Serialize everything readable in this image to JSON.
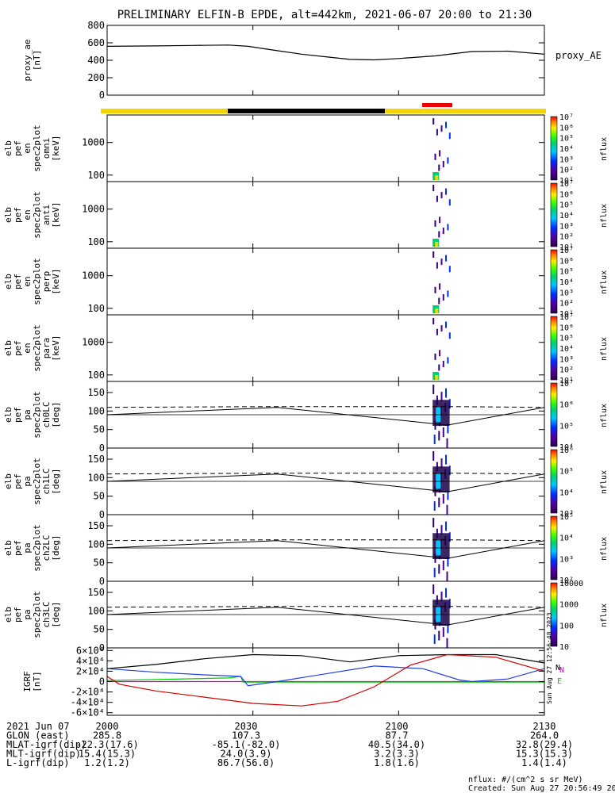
{
  "chart_data": {
    "type": "line",
    "title": "PRELIMINARY ELFIN-B EPDE, alt=442km, 2021-06-07 20:00 to 21:30",
    "time_range": [
      "2021-06-07 20:00",
      "2021-06-07 21:30"
    ],
    "x_ticks": [
      "2000",
      "2030",
      "2100",
      "2130"
    ],
    "panels": [
      {
        "name": "proxy_ae",
        "ylabel": [
          "proxy_ae",
          "[nT]"
        ],
        "ylim": [
          0,
          800
        ],
        "yticks": [
          "0",
          "200",
          "400",
          "600",
          "800"
        ],
        "legend": "proxy_AE",
        "series": [
          {
            "x": [
              0,
              20,
              35,
              50,
              58,
              70,
              80,
              90,
              100,
              110,
              120,
              135,
              150,
              165,
              180
            ],
            "y": [
              560,
              565,
              570,
              575,
              560,
              510,
              470,
              440,
              410,
              405,
              420,
              450,
              500,
              505,
              470
            ]
          }
        ]
      },
      {
        "name": "en_omni",
        "ylabel": [
          "elb",
          "pef",
          "en",
          "spec2plot",
          "omni",
          "[keV]"
        ],
        "ylim": [
          63,
          7000
        ],
        "scale": "log",
        "yticks": [
          "100",
          "1000"
        ],
        "colorbar": {
          "label": "nflux",
          "ticks": [
            "10¹",
            "10²",
            "10³",
            "10⁴",
            "10⁵",
            "10⁶",
            "10⁷"
          ]
        }
      },
      {
        "name": "en_anti",
        "ylabel": [
          "elb",
          "pef",
          "en",
          "spec2plot",
          "anti",
          "[keV]"
        ],
        "ylim": [
          63,
          7000
        ],
        "scale": "log",
        "yticks": [
          "100",
          "1000"
        ],
        "colorbar": {
          "label": "nflux",
          "ticks": [
            "10¹",
            "10²",
            "10³",
            "10⁴",
            "10⁵",
            "10⁶",
            "10⁷"
          ]
        }
      },
      {
        "name": "en_perp",
        "ylabel": [
          "elb",
          "pef",
          "en",
          "spec2plot",
          "perp",
          "[keV]"
        ],
        "ylim": [
          63,
          7000
        ],
        "scale": "log",
        "yticks": [
          "100",
          "1000"
        ],
        "colorbar": {
          "label": "nflux",
          "ticks": [
            "10¹",
            "10²",
            "10³",
            "10⁴",
            "10⁵",
            "10⁶",
            "10⁷"
          ]
        }
      },
      {
        "name": "en_para",
        "ylabel": [
          "elb",
          "pef",
          "en",
          "spec2plot",
          "para",
          "[keV]"
        ],
        "ylim": [
          63,
          7000
        ],
        "scale": "log",
        "yticks": [
          "100",
          "1000"
        ],
        "colorbar": {
          "label": "nflux",
          "ticks": [
            "10¹",
            "10²",
            "10³",
            "10⁴",
            "10⁵",
            "10⁶",
            "10⁷"
          ]
        }
      },
      {
        "name": "pa_ch0LC",
        "ylabel": [
          "elb",
          "pef",
          "pa",
          "spec2plot",
          "ch0LC",
          "[deg]"
        ],
        "ylim": [
          0,
          180
        ],
        "yticks": [
          "0",
          "50",
          "100",
          "150"
        ],
        "colorbar": {
          "label": "nflux",
          "ticks": [
            "10⁴",
            "10⁵",
            "10⁶",
            "10⁷"
          ]
        }
      },
      {
        "name": "pa_ch1LC",
        "ylabel": [
          "elb",
          "pef",
          "pa",
          "spec2plot",
          "ch1LC",
          "[deg]"
        ],
        "ylim": [
          0,
          180
        ],
        "yticks": [
          "0",
          "50",
          "100",
          "150"
        ],
        "colorbar": {
          "label": "nflux",
          "ticks": [
            "10³",
            "10⁴",
            "10⁵",
            "10⁶"
          ]
        }
      },
      {
        "name": "pa_ch2LC",
        "ylabel": [
          "elb",
          "pef",
          "pa",
          "spec2plot",
          "ch2LC",
          "[deg]"
        ],
        "ylim": [
          0,
          180
        ],
        "yticks": [
          "0",
          "50",
          "100",
          "150"
        ],
        "colorbar": {
          "label": "nflux",
          "ticks": [
            "10²",
            "10³",
            "10⁴",
            "10⁵"
          ]
        }
      },
      {
        "name": "pa_ch3LC",
        "ylabel": [
          "elb",
          "pef",
          "pa",
          "spec2plot",
          "ch3LC",
          "[deg]"
        ],
        "ylim": [
          0,
          180
        ],
        "yticks": [
          "0",
          "50",
          "100",
          "150"
        ],
        "colorbar": {
          "label": "nflux",
          "ticks": [
            "10",
            "100",
            "1000",
            "10000"
          ]
        }
      },
      {
        "name": "igrf",
        "ylabel": [
          "IGRF",
          "[nT]"
        ],
        "ylim": [
          -65000,
          65000
        ],
        "yticks": [
          "-6×10⁴",
          "-4×10⁴",
          "-2×10⁴",
          "0",
          "2×10⁴",
          "4×10⁴",
          "6×10⁴"
        ],
        "series": [
          {
            "name": "N",
            "color": "#000000",
            "x": [
              0,
              20,
              40,
              60,
              80,
              100,
              120,
              140,
              160,
              180
            ],
            "y": [
              25000,
              33000,
              44000,
              52000,
              50000,
              38000,
              50000,
              52000,
              52000,
              36000
            ]
          },
          {
            "name": "N",
            "color": "#d000d0",
            "x": [
              0,
              180
            ],
            "y": [
              0,
              0
            ]
          },
          {
            "name": "E",
            "color": "#00cc00",
            "x": [
              0,
              50,
              55,
              56,
              80,
              130,
              175,
              180
            ],
            "y": [
              2000,
              7000,
              10000,
              -1000,
              -1000,
              -1000,
              -1000,
              -1000
            ]
          },
          {
            "name": "",
            "color": "#1f3fdf",
            "x": [
              0,
              20,
              40,
              55,
              58,
              70,
              90,
              110,
              130,
              145,
              150,
              165,
              180
            ],
            "y": [
              25000,
              18000,
              13000,
              10000,
              -8000,
              0,
              15000,
              30000,
              25000,
              3000,
              0,
              5000,
              25000
            ]
          },
          {
            "name": "",
            "color": "#d40000",
            "x": [
              0,
              5,
              20,
              40,
              60,
              80,
              95,
              110,
              125,
              140,
              160,
              180
            ],
            "y": [
              10000,
              -5000,
              -18000,
              -30000,
              -42000,
              -47000,
              -38000,
              -10000,
              32000,
              52000,
              47000,
              20000
            ]
          }
        ]
      }
    ],
    "science_zone_bar": {
      "colors": [
        "#f5d400",
        "#000000",
        "#f5d400"
      ],
      "science_zone_color": "#ee0000"
    }
  },
  "right_labels": {
    "proxy_ae": "proxy_AE",
    "igrf_n": "N",
    "igrf_n2": "N",
    "igrf_e": "E",
    "rotated_stamp": "Sun Aug 27 12:56:48 2023"
  },
  "info_rows": [
    {
      "label": "2021 Jun 07",
      "values": [
        "2000",
        "2030",
        "2100",
        "2130"
      ]
    },
    {
      "label": "GLON (east)",
      "values": [
        "285.8",
        "107.3",
        "87.7",
        "264.0"
      ]
    },
    {
      "label": "MLAT-igrf(dip)",
      "values": [
        "-22.3(17.6)",
        "-85.1(-82.0)",
        "40.5(34.0)",
        "32.8(29.4)"
      ]
    },
    {
      "label": "MLT-igrf(dip)",
      "values": [
        "15.4(15.3)",
        "24.0(3.9)",
        "3.2(3.3)",
        "15.3(15.3)"
      ]
    },
    {
      "label": "L-igrf(dip)",
      "values": [
        "1.2(1.2)",
        "86.7(56.0)",
        "1.8(1.6)",
        "1.4(1.4)"
      ]
    }
  ],
  "footer": {
    "units": "nflux: #/(cm^2 s sr MeV)",
    "created": "Created: Sun Aug 27 20:56:49 2023"
  }
}
